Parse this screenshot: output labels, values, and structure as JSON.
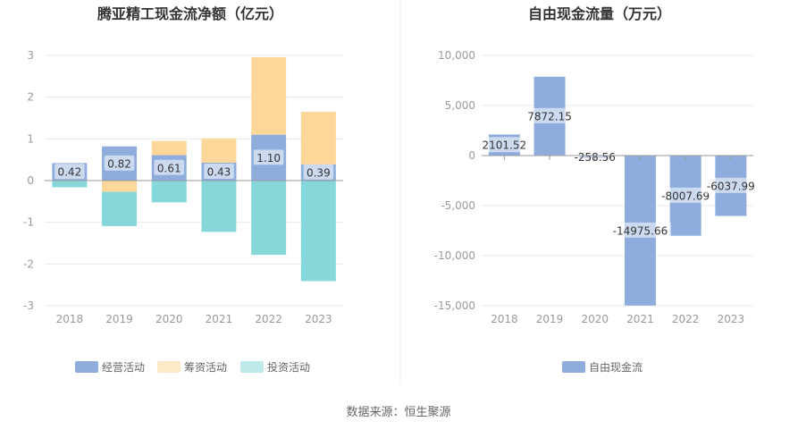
{
  "source": "数据来源：恒生聚源",
  "chart_data": [
    {
      "type": "bar",
      "stacked": true,
      "title": "腾亚精工现金流净额（亿元）",
      "categories": [
        "2018",
        "2019",
        "2020",
        "2021",
        "2022",
        "2023"
      ],
      "yticks": [
        "3",
        "2",
        "1",
        "0",
        "-1",
        "-2",
        "-3"
      ],
      "ylim": [
        -3,
        3
      ],
      "grid": true,
      "legend_position": "bottom",
      "series": [
        {
          "name": "经营活动",
          "color": "#8eaddd",
          "values": [
            0.42,
            0.82,
            0.61,
            0.43,
            1.1,
            0.39
          ],
          "labels": [
            "0.42",
            "0.82",
            "0.61",
            "0.43",
            "1.10",
            "0.39"
          ]
        },
        {
          "name": "筹资活动",
          "color": "#fdd799",
          "values": [
            0.0,
            -0.27,
            0.34,
            0.58,
            1.86,
            1.26
          ]
        },
        {
          "name": "投资活动",
          "color": "#86d7da",
          "values": [
            -0.16,
            -0.82,
            -0.52,
            -1.23,
            -1.78,
            -2.41
          ]
        }
      ]
    },
    {
      "type": "bar",
      "title": "自由现金流量（万元）",
      "categories": [
        "2018",
        "2019",
        "2020",
        "2021",
        "2022",
        "2023"
      ],
      "yticks": [
        "10,000",
        "5,000",
        "0",
        "-5,000",
        "-10,000",
        "-15,000"
      ],
      "ylim": [
        -15000,
        10000
      ],
      "grid": true,
      "legend_position": "bottom",
      "series": [
        {
          "name": "自由现金流",
          "color": "#8eaddd",
          "values": [
            2101.52,
            7872.15,
            -258.56,
            -14975.66,
            -8007.69,
            -6037.99
          ],
          "labels": [
            "2101.52",
            "7872.15",
            "-258.56",
            "-14975.66",
            "-8007.69",
            "-6037.99"
          ]
        }
      ]
    }
  ]
}
